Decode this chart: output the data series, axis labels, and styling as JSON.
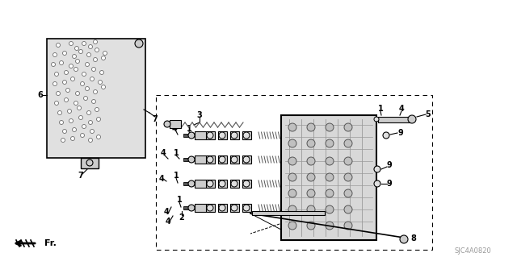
{
  "bg_color": "#ffffff",
  "line_color": "#000000",
  "dark_gray": "#555555",
  "med_gray": "#999999",
  "light_gray": "#cccccc",
  "plate_gray": "#e0e0e0",
  "diagram_code": "SJC4A0820",
  "fr_label": "Fr."
}
